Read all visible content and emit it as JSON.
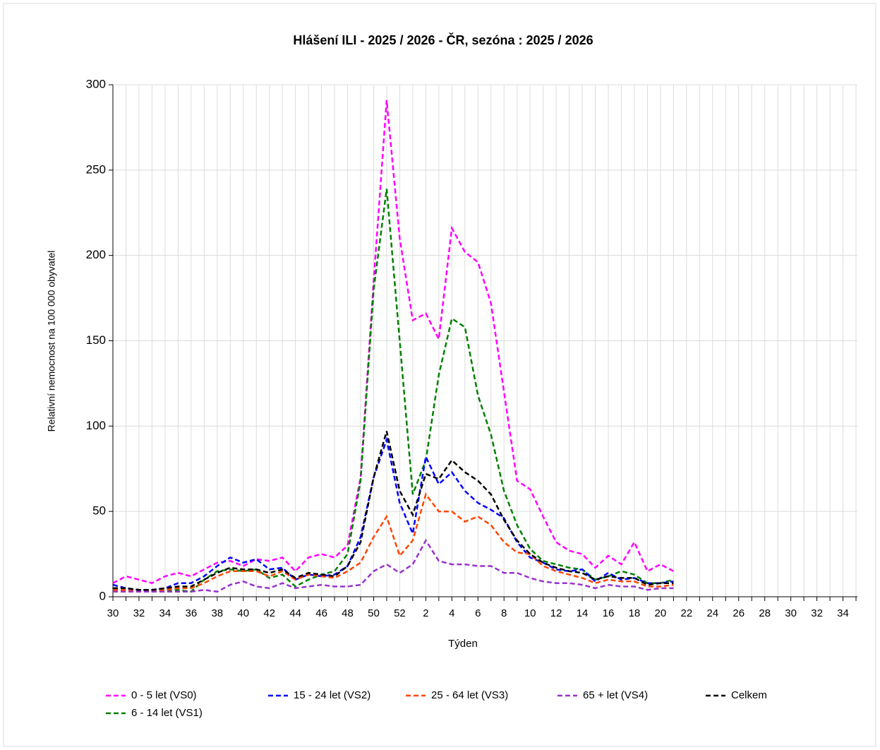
{
  "chart_data": {
    "type": "line",
    "title": "Hlášení ILI - 2025 / 2026 - ČR, sezóna : 2025 / 2026",
    "x_label": "Týden",
    "y_label": "Relativní nemocnost na 100 000 obyvatel",
    "categories": [
      "30",
      null,
      "32",
      null,
      "34",
      null,
      "36",
      null,
      "38",
      null,
      "40",
      null,
      "42",
      null,
      "44",
      null,
      "46",
      null,
      "48",
      null,
      "50",
      null,
      "52",
      null,
      "2",
      null,
      "4",
      null,
      "6",
      null,
      "8",
      null,
      "10",
      null,
      "12",
      null,
      "14",
      null,
      "16",
      null,
      "18",
      null,
      "20",
      null,
      "22",
      null,
      "24",
      null,
      "26",
      null,
      "28",
      null,
      "30",
      null,
      "32",
      null,
      "34",
      null
    ],
    "ylim": [
      0,
      300
    ],
    "yticks": [
      0,
      50,
      100,
      150,
      200,
      250,
      300
    ],
    "grid": true,
    "series": [
      {
        "name": "0 - 5 let (VS0)",
        "color": "#ff00ff",
        "values": [
          8,
          12,
          10,
          8,
          12,
          14,
          12,
          16,
          20,
          21,
          18,
          22,
          21,
          23,
          15,
          23,
          25,
          23,
          30,
          70,
          185,
          291,
          210,
          162,
          166,
          151,
          216,
          202,
          196,
          172,
          120,
          68,
          63,
          47,
          32,
          27,
          25,
          17,
          24,
          19,
          32,
          15,
          19,
          15,
          null,
          null,
          null,
          null,
          null,
          null,
          null,
          null,
          null,
          null,
          null,
          null,
          null,
          null
        ]
      },
      {
        "name": "6 - 14 let (VS1)",
        "color": "#008000",
        "values": [
          5,
          5,
          4,
          3,
          4,
          4,
          3,
          10,
          15,
          16,
          15,
          16,
          11,
          13,
          6,
          10,
          13,
          15,
          25,
          68,
          180,
          239,
          150,
          60,
          80,
          130,
          163,
          158,
          118,
          95,
          62,
          42,
          28,
          21,
          19,
          17,
          16,
          10,
          12,
          15,
          13,
          8,
          8,
          10,
          null,
          null,
          null,
          null,
          null,
          null,
          null,
          null,
          null,
          null,
          null,
          null,
          null,
          null
        ]
      },
      {
        "name": "15 - 24 let (VS2)",
        "color": "#0000ff",
        "values": [
          7,
          5,
          4,
          4,
          5,
          8,
          8,
          12,
          18,
          23,
          20,
          22,
          16,
          17,
          10,
          13,
          12,
          13,
          18,
          35,
          70,
          92,
          55,
          37,
          82,
          66,
          73,
          62,
          55,
          51,
          46,
          32,
          23,
          20,
          16,
          15,
          16,
          9,
          14,
          10,
          11,
          8,
          8,
          9,
          null,
          null,
          null,
          null,
          null,
          null,
          null,
          null,
          null,
          null,
          null,
          null,
          null,
          null
        ]
      },
      {
        "name": "25 - 64 let (VS3)",
        "color": "#ff4500",
        "values": [
          4,
          4,
          3,
          3,
          4,
          5,
          5,
          8,
          12,
          15,
          15,
          15,
          12,
          15,
          10,
          13,
          12,
          11,
          15,
          20,
          35,
          47,
          24,
          33,
          60,
          50,
          50,
          44,
          47,
          42,
          32,
          26,
          25,
          18,
          15,
          13,
          11,
          8,
          10,
          9,
          9,
          6,
          6,
          7,
          null,
          null,
          null,
          null,
          null,
          null,
          null,
          null,
          null,
          null,
          null,
          null,
          null,
          null
        ]
      },
      {
        "name": "65 + let (VS4)",
        "color": "#9932cc",
        "values": [
          3,
          3,
          3,
          3,
          3,
          3,
          3,
          4,
          3,
          7,
          9,
          6,
          5,
          8,
          5,
          6,
          7,
          6,
          6,
          7,
          15,
          19,
          14,
          19,
          33,
          21,
          19,
          19,
          18,
          18,
          14,
          14,
          11,
          9,
          8,
          8,
          7,
          5,
          7,
          6,
          6,
          4,
          5,
          5,
          null,
          null,
          null,
          null,
          null,
          null,
          null,
          null,
          null,
          null,
          null,
          null,
          null,
          null
        ]
      },
      {
        "name": "Celkem",
        "color": "#000000",
        "values": [
          5,
          5,
          4,
          4,
          5,
          6,
          6,
          10,
          14,
          17,
          16,
          16,
          14,
          16,
          11,
          14,
          13,
          12,
          18,
          32,
          70,
          97,
          62,
          48,
          72,
          69,
          80,
          73,
          68,
          60,
          45,
          33,
          25,
          20,
          17,
          15,
          14,
          10,
          12,
          11,
          11,
          7,
          8,
          8,
          null,
          null,
          null,
          null,
          null,
          null,
          null,
          null,
          null,
          null,
          null,
          null,
          null,
          null
        ]
      }
    ]
  }
}
